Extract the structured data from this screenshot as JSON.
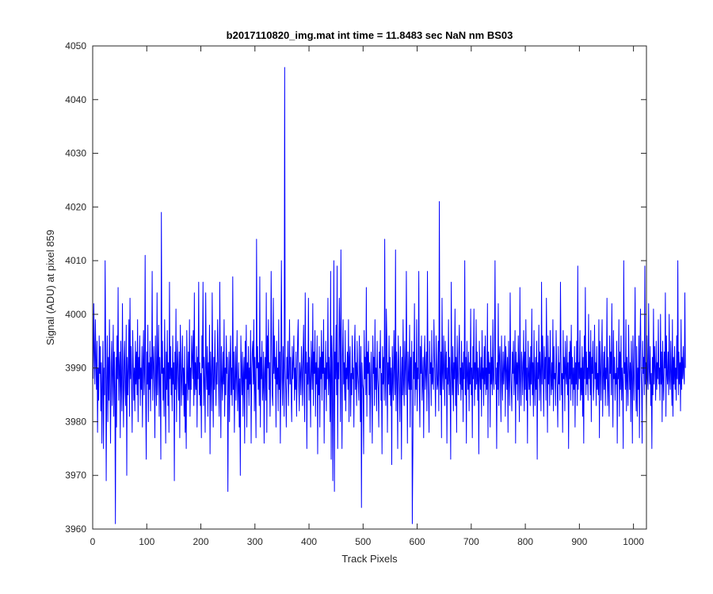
{
  "chart_data": {
    "type": "line",
    "title": "b2017110820_img.mat int time = 11.8483 sec  NaN nm BS03",
    "xlabel": "Track Pixels",
    "ylabel": "Signal (ADU) at pixel 859",
    "xlim": [
      0,
      1024
    ],
    "ylim": [
      3960,
      4050
    ],
    "xticks": [
      0,
      100,
      200,
      300,
      400,
      500,
      600,
      700,
      800,
      900,
      1000
    ],
    "yticks": [
      3960,
      3970,
      3980,
      3990,
      4000,
      4010,
      4020,
      4030,
      4040,
      4050
    ],
    "xtick_labels": [
      "0",
      "100",
      "200",
      "300",
      "400",
      "500",
      "600",
      "700",
      "800",
      "900",
      "1000"
    ],
    "ytick_labels": [
      "3960",
      "3970",
      "3980",
      "3990",
      "4000",
      "4010",
      "4020",
      "4030",
      "4040",
      "4050"
    ],
    "grid": false,
    "series": [
      {
        "color": "#0000ff",
        "x_start": 1,
        "x_step": 1,
        "values": [
          3988,
          4002,
          3993,
          3987,
          3999,
          3991,
          3986,
          3995,
          3978,
          3990,
          3984,
          3996,
          3989,
          3994,
          3982,
          3991,
          3976,
          3987,
          3995,
          3975,
          3990,
          3985,
          4010,
          3993,
          3969,
          3988,
          3996,
          3980,
          3992,
          3984,
          3999,
          3987,
          3976,
          3991,
          3995,
          3983,
          3989,
          3998,
          3981,
          3993,
          3986,
          3961,
          3992,
          3979,
          3996,
          3988,
          4005,
          3984,
          3990,
          3993,
          3977,
          3995,
          3987,
          3982,
          4002,
          3988,
          3979,
          3991,
          3995,
          3986,
          3983,
          3998,
          3970,
          3992,
          3985,
          3990,
          3999,
          3981,
          4003,
          3988,
          3994,
          3986,
          3978,
          3997,
          3991,
          3984,
          3990,
          3982,
          3995,
          3987,
          3993,
          3985,
          3999,
          3980,
          3992,
          3988,
          3996,
          3983,
          3990,
          3986,
          3994,
          3979,
          3991,
          3997,
          3985,
          3989,
          4011,
          3984,
          3973,
          3993,
          3987,
          3998,
          3980,
          3991,
          3986,
          3995,
          3982,
          3992,
          3988,
          4008,
          3984,
          3990,
          3994,
          3987,
          3977,
          3996,
          3989,
          3983,
          4004,
          3985,
          3991,
          3998,
          3981,
          3992,
          3987,
          3973,
          4019,
          3989,
          3995,
          3984,
          3990,
          3981,
          3999,
          3988,
          3976,
          3993,
          3986,
          3997,
          3983,
          3991,
          3978,
          4006,
          3988,
          3994,
          3985,
          3990,
          3982,
          3996,
          3987,
          3991,
          3969,
          3993,
          3986,
          4001,
          3980,
          3990,
          3995,
          3988,
          3984,
          3993,
          3977,
          3998,
          3991,
          3983,
          3989,
          3996,
          3985,
          3990,
          3981,
          3994,
          3978,
          3987,
          3975,
          3997,
          3989,
          3984,
          3993,
          3986,
          3999,
          3981,
          3990,
          3986,
          3996,
          3992,
          3988,
          3997,
          3983,
          4004,
          3985,
          3991,
          3986,
          3994,
          3979,
          3992,
          3988,
          4006,
          3985,
          3991,
          3983,
          3989,
          3977,
          3996,
          3990,
          4006,
          3983,
          3992,
          3987,
          3978,
          4004,
          3990,
          3986,
          3994,
          3981,
          3991,
          3985,
          3998,
          3974,
          3993,
          3988,
          3982,
          4004,
          3990,
          3979,
          3992,
          3986,
          3997,
          3989,
          3983,
          3991,
          3987,
          3999,
          3992,
          3986,
          3981,
          4006,
          3990,
          3977,
          3994,
          3988,
          3984,
          3993,
          3987,
          3999,
          3981,
          3990,
          3985,
          3996,
          3989,
          3992,
          3967,
          3987,
          3993,
          3980,
          3991,
          3996,
          3985,
          3990,
          3983,
          4007,
          3986,
          3993,
          3978,
          3988,
          3994,
          3984,
          3989,
          3997,
          3982,
          3986,
          3991,
          3979,
          3988,
          3970,
          3996,
          3990,
          3985,
          3993,
          3981,
          3989,
          3992,
          3976,
          3995,
          3988,
          3998,
          3979,
          3991,
          3986,
          3994,
          3983,
          3990,
          3987,
          3997,
          3976,
          3989,
          3993,
          3995,
          3987,
          3999,
          3982,
          3992,
          3985,
          3977,
          4014,
          3990,
          3994,
          3986,
          3991,
          3983,
          4007,
          3979,
          3992,
          3988,
          3995,
          3984,
          3987,
          3993,
          3976,
          3989,
          3992,
          3984,
          4004,
          3978,
          3996,
          3990,
          3999,
          3986,
          3991,
          3981,
          3988,
          4008,
          3993,
          3985,
          3983,
          4003,
          3989,
          3996,
          3988,
          3992,
          3979,
          3995,
          3987,
          3990,
          3982,
          3999,
          3986,
          3993,
          3976,
          3991,
          4010,
          3988,
          3983,
          3994,
          3989,
          3981,
          4046,
          3990,
          3986,
          3979,
          3992,
          3988,
          3995,
          3983,
          3989,
          3999,
          3987,
          3992,
          3985,
          3980,
          3994,
          3988,
          3991,
          3996,
          3984,
          3990,
          3986,
          3993,
          3981,
          3988,
          3995,
          3999,
          3987,
          3982,
          3991,
          3989,
          3985,
          3994,
          3990,
          3983,
          3992,
          3998,
          3986,
          3980,
          4004,
          3989,
          3993,
          3975,
          3991,
          3987,
          4003,
          3984,
          3992,
          3988,
          3979,
          3995,
          3990,
          3986,
          4002,
          3983,
          3993,
          3989,
          3997,
          3981,
          3991,
          3987,
          3996,
          3974,
          3990,
          3985,
          3994,
          3979,
          3992,
          3988,
          3997,
          3984,
          3993,
          3989,
          3999,
          3976,
          3990,
          3986,
          3995,
          3982,
          3991,
          3988,
          4003,
          3985,
          3992,
          3988,
          3980,
          4008,
          3973,
          3996,
          3991,
          3969,
          3986,
          4010,
          3967,
          3993,
          3988,
          3998,
          3985,
          4009,
          3975,
          3991,
          3988,
          4003,
          3996,
          3980,
          4012,
          3989,
          3975,
          3992,
          3999,
          3987,
          3991,
          3984,
          3997,
          3982,
          3990,
          3988,
          3993,
          3986,
          3999,
          3980,
          3992,
          3994,
          3981,
          3989,
          3985,
          3996,
          3988,
          3990,
          3979,
          3993,
          3998,
          3986,
          3991,
          3983,
          3995,
          3989,
          3987,
          3984,
          3996,
          3990,
          3980,
          3994,
          3964,
          3991,
          3987,
          3986,
          3974,
          3997,
          3988,
          3992,
          3985,
          4005,
          3981,
          3993,
          3989,
          3995,
          3985,
          3991,
          3978,
          3988,
          3993,
          3985,
          3976,
          3996,
          3989,
          3992,
          3983,
          3999,
          3986,
          3990,
          3982,
          3995,
          3988,
          3986,
          3979,
          3993,
          3990,
          3997,
          3984,
          3989,
          3974,
          3994,
          3987,
          3992,
          3984,
          4014,
          3988,
          3983,
          4001,
          3995,
          3978,
          3991,
          3987,
          3996,
          3985,
          3992,
          3983,
          3990,
          3972,
          3994,
          3988,
          3984,
          3997,
          3990,
          3985,
          4012,
          3982,
          3993,
          3988,
          3975,
          3996,
          3991,
          3986,
          3980,
          3994,
          3989,
          3973,
          3992,
          3985,
          3999,
          3987,
          3983,
          3995,
          3990,
          3985,
          4008,
          3991,
          3976,
          3993,
          3988,
          3986,
          3998,
          3979,
          3992,
          3986,
          3995,
          3961,
          3974,
          3993,
          3988,
          4002,
          3983,
          3991,
          3986,
          3999,
          3982,
          3990,
          3988,
          4008,
          3986,
          3979,
          3994,
          3989,
          3996,
          3984,
          3988,
          3992,
          3977,
          3991,
          3996,
          3986,
          3989,
          3993,
          3982,
          4008,
          3990,
          3985,
          3978,
          3995,
          3989,
          3991,
          3983,
          3997,
          3987,
          3990,
          3986,
          3999,
          3992,
          3988,
          3981,
          3996,
          3991,
          3986,
          3987,
          3995,
          3982,
          4021,
          3989,
          3985,
          3993,
          3977,
          4003,
          3989,
          3986,
          3996,
          3990,
          3983,
          3995,
          3988,
          3993,
          3976,
          3990,
          3987,
          3999,
          3985,
          3992,
          3987,
          3973,
          4006,
          3990,
          3985,
          3994,
          3982,
          3991,
          3988,
          4001,
          3983,
          3992,
          3978,
          3996,
          3989,
          3985,
          3993,
          3998,
          3987,
          3990,
          3984,
          3995,
          3986,
          3991,
          3980,
          3993,
          3988,
          4010,
          3985,
          3992,
          3976,
          3995,
          3989,
          3986,
          3993,
          3982,
          3991,
          3987,
          4001,
          3985,
          3990,
          3977,
          3994,
          3988,
          4001,
          3983,
          3991,
          3986,
          3999,
          3987,
          3993,
          3984,
          3990,
          3974,
          3995,
          3989,
          3986,
          3992,
          3981,
          3997,
          3988,
          3990,
          3983,
          3994,
          3987,
          3996,
          3985,
          3990,
          3986,
          4002,
          3977,
          3993,
          3989,
          3991,
          3979,
          3996,
          3987,
          3992,
          3985,
          3999,
          3988,
          3986,
          3993,
          4010,
          3987,
          3990,
          3975,
          3991,
          3986,
          4002,
          3983,
          3992,
          3994,
          3988,
          3980,
          3996,
          3989,
          3984,
          3993,
          3987,
          3990,
          3996,
          3981,
          3994,
          3990,
          3986,
          3992,
          3978,
          3995,
          3988,
          3983,
          4004,
          3990,
          3986,
          3982,
          3993,
          3989,
          3995,
          3985,
          3989,
          3997,
          3976,
          3993,
          3987,
          3991,
          3984,
          3996,
          3990,
          3980,
          4005,
          3988,
          3983,
          3993,
          3991,
          3985,
          3990,
          3997,
          3982,
          3993,
          3986,
          3999,
          3984,
          3990,
          3976,
          3995,
          3989,
          3986,
          3992,
          3983,
          3994,
          3987,
          4001,
          3985,
          3991,
          3981,
          3997,
          3988,
          3983,
          3992,
          3986,
          3995,
          3973,
          3991,
          3988,
          3998,
          3984,
          3993,
          3989,
          3982,
          4006,
          3987,
          3996,
          3990,
          3981,
          3994,
          3988,
          3992,
          3984,
          4003,
          3990,
          3978,
          3996,
          3987,
          3992,
          3983,
          3997,
          3989,
          3985,
          3991,
          3986,
          3999,
          3982,
          3994,
          3988,
          3989,
          3983,
          3997,
          3990,
          3986,
          3979,
          3994,
          3987,
          3991,
          3984,
          4006,
          3992,
          3985,
          3989,
          3978,
          3997,
          3988,
          3992,
          3982,
          3995,
          3989,
          3987,
          3996,
          3985,
          3991,
          3975,
          3993,
          3988,
          3995,
          3984,
          3998,
          3987,
          3992,
          3983,
          3990,
          3986,
          3994,
          3979,
          3991,
          3987,
          3995,
          3983,
          4009,
          3986,
          3991,
          3988,
          3997,
          3984,
          3990,
          3985,
          3994,
          3981,
          3992,
          3976,
          3996,
          3988,
          4005,
          3985,
          3993,
          3987,
          3990,
          3984,
          4000,
          3988,
          3993,
          3985,
          3997,
          3980,
          3992,
          3989,
          3995,
          3984,
          3987,
          3998,
          3988,
          3991,
          3983,
          3994,
          3986,
          3989,
          3985,
          3999,
          3977,
          3995,
          3990,
          3984,
          3992,
          3999,
          3981,
          3988,
          3993,
          3986,
          3994,
          3983,
          3990,
          3988,
          4003,
          3983,
          3992,
          3986,
          3981,
          3996,
          3989,
          3993,
          3985,
          4002,
          3989,
          3979,
          3997,
          3988,
          3992,
          3984,
          3989,
          3987,
          3995,
          3976,
          3990,
          3988,
          3999,
          3981,
          3993,
          3986,
          3996,
          3984,
          3990,
          3987,
          3975,
          4010,
          3989,
          3991,
          3986,
          3999,
          3982,
          3992,
          3988,
          3983,
          3998,
          3990,
          3986,
          3991,
          3980,
          3995,
          3988,
          3976,
          3996,
          3989,
          3984,
          3992,
          4005,
          3987,
          3982,
          3994,
          3981,
          3990,
          3986,
          3996,
          3977,
          3993,
          4001,
          3990,
          3986,
          3976,
          3995,
          3989,
          3992,
          3985,
          4009,
          3987,
          3991,
          3980,
          3996,
          3988,
          3986,
          4002,
          3990,
          3987,
          3994,
          3983,
          3989,
          3975,
          3992,
          3985,
          4001,
          3987,
          3994,
          3990,
          3984,
          3995,
          3986,
          3991,
          3988,
          3999,
          3987,
          3990,
          3984,
          4000,
          3987,
          3993,
          3980,
          3995,
          3988,
          3984,
          3993,
          3990,
          4004,
          3981,
          3996,
          3989,
          3987,
          3993,
          3985,
          4000,
          3988,
          3986,
          3995,
          3989,
          3983,
          3999,
          3981,
          3992,
          3987,
          3994,
          3986,
          3990,
          3984,
          3996,
          3988,
          4010,
          3985,
          3993,
          3987,
          3991,
          3982,
          3999,
          3986,
          3992,
          3988,
          3994,
          3989,
          3987,
          4004,
          3990
        ]
      }
    ]
  }
}
